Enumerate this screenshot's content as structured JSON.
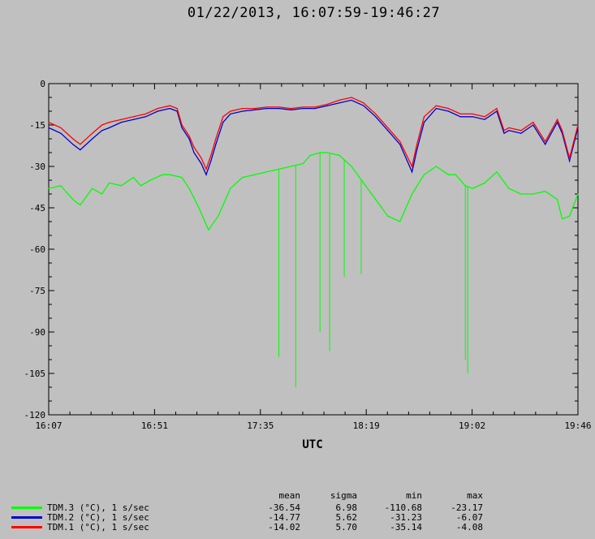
{
  "chart_data": {
    "type": "line",
    "title": "01/22/2013, 16:07:59-19:46:27",
    "xlabel": "UTC",
    "ylabel": "",
    "x_ticks": [
      "16:07",
      "16:51",
      "17:35",
      "18:19",
      "19:02",
      "19:46"
    ],
    "y_ticks": [
      0,
      -15,
      -30,
      -45,
      -60,
      -75,
      -90,
      -105,
      -120
    ],
    "ylim": [
      -120,
      0
    ],
    "x_range_minutes": [
      0,
      218.5
    ],
    "grid": "off",
    "legend_position": "bottom-left",
    "series": [
      {
        "name": "TDM.3 (°C), 1 s/sec",
        "color": "#00ff00",
        "x": [
          0,
          5,
          10,
          13,
          18,
          22,
          25,
          30,
          35,
          38,
          42,
          47,
          50,
          55,
          58,
          62,
          66,
          70,
          75,
          80,
          85,
          90,
          95,
          100,
          105,
          108,
          112,
          115,
          120,
          125,
          130,
          135,
          140,
          145,
          150,
          155,
          160,
          165,
          168,
          172,
          175,
          180,
          185,
          190,
          195,
          200,
          205,
          210,
          212,
          215,
          218.5
        ],
        "values": [
          -38,
          -37,
          -42,
          -44,
          -38,
          -40,
          -36,
          -37,
          -34,
          -37,
          -35,
          -33,
          -33,
          -34,
          -38,
          -45,
          -53,
          -48,
          -38,
          -34,
          -33,
          -32,
          -31,
          -30,
          -29,
          -26,
          -25,
          -25,
          -26,
          -30,
          -36,
          -42,
          -48,
          -50,
          -40,
          -33,
          -30,
          -33,
          -33,
          -37,
          -38,
          -36,
          -32,
          -38,
          -40,
          -40,
          -39,
          -42,
          -49,
          -48,
          -40
        ],
        "spikes": [
          [
            95,
            -99
          ],
          [
            102,
            -110
          ],
          [
            112,
            -90
          ],
          [
            116,
            -97
          ],
          [
            122,
            -70
          ],
          [
            129,
            -69
          ],
          [
            172,
            -100
          ],
          [
            173,
            -105
          ]
        ]
      },
      {
        "name": "TDM.2 (°C), 1 s/sec",
        "color": "#0000cc",
        "x": [
          0,
          5,
          10,
          13,
          18,
          22,
          25,
          30,
          35,
          40,
          45,
          50,
          53,
          55,
          58,
          60,
          63,
          65,
          67,
          69,
          72,
          75,
          80,
          85,
          90,
          95,
          100,
          105,
          110,
          115,
          120,
          125,
          130,
          135,
          140,
          145,
          150,
          152,
          155,
          160,
          165,
          170,
          175,
          180,
          185,
          188,
          190,
          195,
          200,
          205,
          210,
          212,
          215,
          218.5
        ],
        "values": [
          -16,
          -18,
          -22,
          -24,
          -20,
          -17,
          -16,
          -14,
          -13,
          -12,
          -10,
          -9,
          -10,
          -16,
          -20,
          -25,
          -29,
          -33,
          -28,
          -22,
          -14,
          -11,
          -10,
          -9.5,
          -9,
          -9,
          -9.5,
          -9,
          -9,
          -8,
          -7,
          -6,
          -8,
          -12,
          -17,
          -22,
          -32,
          -24,
          -14,
          -9,
          -10,
          -12,
          -12,
          -13,
          -10,
          -18,
          -17,
          -18,
          -15,
          -22,
          -14,
          -18,
          -28,
          -16
        ],
        "spikes": []
      },
      {
        "name": "TDM.1 (°C), 1 s/sec",
        "color": "#ff0000",
        "x": [
          0,
          5,
          10,
          13,
          18,
          22,
          25,
          30,
          35,
          40,
          45,
          50,
          53,
          55,
          58,
          60,
          63,
          65,
          67,
          69,
          72,
          75,
          80,
          85,
          90,
          95,
          100,
          105,
          110,
          115,
          120,
          125,
          130,
          135,
          140,
          145,
          150,
          152,
          155,
          160,
          165,
          170,
          175,
          180,
          185,
          188,
          190,
          195,
          200,
          205,
          210,
          212,
          215,
          218.5
        ],
        "values": [
          -14,
          -16,
          -20,
          -22,
          -18,
          -15,
          -14,
          -13,
          -12,
          -11,
          -9,
          -8,
          -9,
          -15,
          -19,
          -23,
          -27,
          -31,
          -26,
          -20,
          -12,
          -10,
          -9,
          -9,
          -8.5,
          -8.5,
          -9,
          -8.5,
          -8.5,
          -7.5,
          -6,
          -5,
          -7,
          -11,
          -16,
          -21,
          -30,
          -22,
          -12,
          -8,
          -9,
          -11,
          -11,
          -12,
          -9,
          -17,
          -16,
          -17,
          -14,
          -21,
          -13,
          -17,
          -27,
          -15
        ],
        "spikes": []
      }
    ]
  },
  "stats": {
    "headers": [
      "mean",
      "sigma",
      "min",
      "max"
    ],
    "rows": [
      {
        "name": "TDM.3 (°C), 1 s/sec",
        "color": "#00ff00",
        "mean": "-36.54",
        "sigma": "6.98",
        "min": "-110.68",
        "max": "-23.17"
      },
      {
        "name": "TDM.2 (°C), 1 s/sec",
        "color": "#0000cc",
        "mean": "-14.77",
        "sigma": "5.62",
        "min": "-31.23",
        "max": "-6.07"
      },
      {
        "name": "TDM.1 (°C), 1 s/sec",
        "color": "#ff0000",
        "mean": "-14.02",
        "sigma": "5.70",
        "min": "-35.14",
        "max": "-4.08"
      }
    ]
  }
}
